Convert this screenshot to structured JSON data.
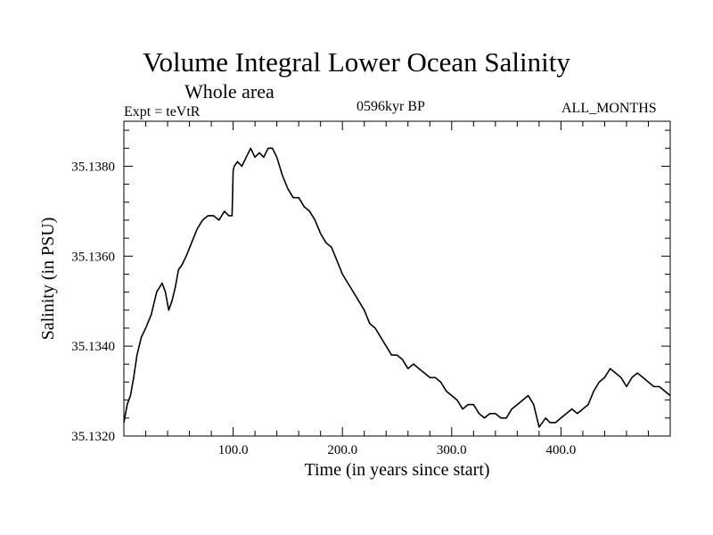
{
  "header": {
    "title": "Volume Integral Lower Ocean Salinity",
    "subtitle": "Whole area",
    "experiment": "Expt = teVtR",
    "period": "0596kyr BP",
    "months": "ALL_MONTHS"
  },
  "chart_data": {
    "type": "line",
    "title": "Volume Integral Lower Ocean Salinity",
    "subtitle": "Whole area",
    "xlabel": "Time (in years since start)",
    "ylabel": "Salinity (in PSU)",
    "xlim": [
      0,
      500
    ],
    "ylim": [
      35.132,
      35.139
    ],
    "xticks": [
      100,
      200,
      300,
      400
    ],
    "xtick_labels": [
      "100.0",
      "200.0",
      "300.0",
      "400.0"
    ],
    "yticks": [
      35.132,
      35.134,
      35.136,
      35.138
    ],
    "ytick_labels": [
      "35.1320",
      "35.1340",
      "35.1360",
      "35.1380"
    ],
    "grid": false,
    "series": [
      {
        "name": "Salinity",
        "x": [
          0,
          3,
          6,
          9,
          12,
          16,
          20,
          25,
          30,
          35,
          38,
          41,
          44,
          47,
          50,
          53,
          57,
          62,
          67,
          72,
          77,
          82,
          87,
          92,
          96,
          99,
          100,
          101,
          104,
          108,
          112,
          116,
          120,
          124,
          128,
          132,
          136,
          140,
          145,
          150,
          155,
          160,
          165,
          170,
          175,
          180,
          185,
          190,
          195,
          200,
          205,
          210,
          215,
          220,
          225,
          230,
          235,
          240,
          245,
          250,
          255,
          260,
          265,
          270,
          275,
          280,
          285,
          290,
          295,
          300,
          305,
          310,
          315,
          320,
          325,
          330,
          335,
          340,
          345,
          350,
          355,
          360,
          365,
          370,
          375,
          380,
          383,
          386,
          390,
          395,
          400,
          405,
          410,
          415,
          420,
          425,
          430,
          435,
          440,
          445,
          450,
          455,
          460,
          465,
          470,
          475,
          480,
          485,
          490,
          495,
          500
        ],
        "values": [
          35.1323,
          35.1327,
          35.1329,
          35.1333,
          35.1338,
          35.1342,
          35.1344,
          35.1347,
          35.1352,
          35.1354,
          35.1352,
          35.1348,
          35.135,
          35.1353,
          35.1357,
          35.1358,
          35.136,
          35.1363,
          35.1366,
          35.1368,
          35.1369,
          35.1369,
          35.1368,
          35.137,
          35.1369,
          35.1369,
          35.1379,
          35.138,
          35.1381,
          35.138,
          35.1382,
          35.1384,
          35.1382,
          35.1383,
          35.1382,
          35.1384,
          35.1384,
          35.1382,
          35.1378,
          35.1375,
          35.1373,
          35.1373,
          35.1371,
          35.137,
          35.1368,
          35.1365,
          35.1363,
          35.1362,
          35.1359,
          35.1356,
          35.1354,
          35.1352,
          35.135,
          35.1348,
          35.1345,
          35.1344,
          35.1342,
          35.134,
          35.1338,
          35.1338,
          35.1337,
          35.1335,
          35.1336,
          35.1335,
          35.1334,
          35.1333,
          35.1333,
          35.1332,
          35.133,
          35.1329,
          35.1328,
          35.1326,
          35.1327,
          35.1327,
          35.1325,
          35.1324,
          35.1325,
          35.1325,
          35.1324,
          35.1324,
          35.1326,
          35.1327,
          35.1328,
          35.1329,
          35.1327,
          35.1322,
          35.1323,
          35.1324,
          35.1323,
          35.1323,
          35.1324,
          35.1325,
          35.1326,
          35.1325,
          35.1326,
          35.1327,
          35.133,
          35.1332,
          35.1333,
          35.1335,
          35.1334,
          35.1333,
          35.1331,
          35.1333,
          35.1334,
          35.1333,
          35.1332,
          35.1331,
          35.1331,
          35.133,
          35.1329
        ]
      }
    ]
  }
}
